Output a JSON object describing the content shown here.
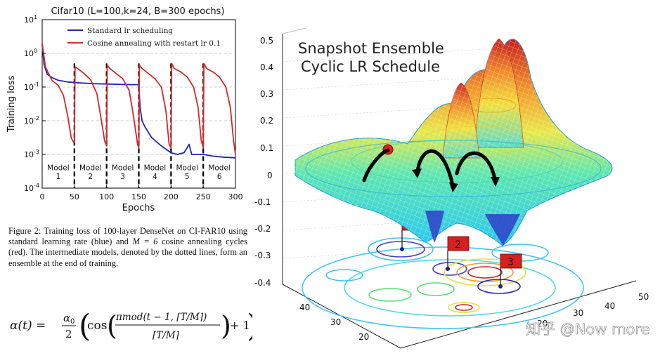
{
  "chart_data": {
    "type": "line",
    "title": "Cifar10 (L=100,k=24, B=300 epochs)",
    "xlabel": "Epochs",
    "ylabel": "Training loss",
    "xlim": [
      0,
      300
    ],
    "ylim_log10": [
      -4,
      1
    ],
    "x_ticks": [
      "0",
      "50",
      "100",
      "150",
      "200",
      "250",
      "300"
    ],
    "y_ticks": [
      "10^1",
      "10^0",
      "10^-1",
      "10^-2",
      "10^-3",
      "10^-4"
    ],
    "legend": [
      {
        "name": "Standard lr scheduling",
        "color": "#1f24b4"
      },
      {
        "name": "Cosine annealing with restart lr 0.1",
        "color": "#d62728"
      }
    ],
    "restart_epochs": [
      50,
      100,
      150,
      200,
      250
    ],
    "models": [
      {
        "name": "Model",
        "index": "1"
      },
      {
        "name": "Model",
        "index": "2"
      },
      {
        "name": "Model",
        "index": "3"
      },
      {
        "name": "Model",
        "index": "4"
      },
      {
        "name": "Model",
        "index": "5"
      },
      {
        "name": "Model",
        "index": "6"
      }
    ],
    "series": [
      {
        "name": "Standard lr scheduling",
        "x": [
          0,
          3,
          8,
          15,
          25,
          40,
          60,
          80,
          100,
          120,
          140,
          150,
          152,
          155,
          160,
          170,
          185,
          200,
          210,
          220,
          225,
          228,
          232,
          240,
          250,
          265,
          280,
          300
        ],
        "y_log10": [
          0.25,
          -0.35,
          -0.62,
          -0.72,
          -0.8,
          -0.85,
          -0.88,
          -0.9,
          -0.91,
          -0.92,
          -0.93,
          -0.93,
          -1.6,
          -2.0,
          -2.2,
          -2.5,
          -2.75,
          -2.95,
          -3.0,
          -2.95,
          -2.8,
          -2.7,
          -3.0,
          -3.0,
          -3.0,
          -3.05,
          -3.08,
          -3.1
        ]
      },
      {
        "name": "Cosine annealing with restart lr 0.1",
        "x": [
          0,
          5,
          15,
          25,
          33,
          40,
          45,
          48,
          50,
          51,
          55,
          65,
          75,
          85,
          92,
          97,
          100,
          101,
          105,
          115,
          125,
          135,
          142,
          148,
          150,
          151,
          155,
          165,
          175,
          185,
          192,
          197,
          200,
          201,
          205,
          215,
          225,
          235,
          242,
          247,
          250,
          251,
          255,
          265,
          275,
          285,
          292,
          297,
          300
        ],
        "y_log10": [
          0.3,
          -0.4,
          -0.8,
          -0.95,
          -1.25,
          -1.9,
          -2.5,
          -2.62,
          -2.65,
          -0.4,
          -0.45,
          -0.6,
          -0.78,
          -1.2,
          -2.0,
          -2.6,
          -2.75,
          -0.35,
          -0.45,
          -0.6,
          -0.75,
          -1.1,
          -1.9,
          -2.7,
          -2.8,
          -0.35,
          -0.45,
          -0.6,
          -0.75,
          -1.0,
          -1.7,
          -2.7,
          -2.8,
          -0.3,
          -0.45,
          -0.55,
          -0.7,
          -1.0,
          -1.6,
          -2.6,
          -2.8,
          -0.3,
          -0.45,
          -0.55,
          -0.7,
          -1.0,
          -1.6,
          -2.6,
          -3.0
        ]
      }
    ]
  },
  "caption": {
    "label": "Figure 2:",
    "text_a": "Training loss of 100-layer DenseNet on CI-FAR10 using standard learning rate (blue) and",
    "math": "M = 6",
    "text_b": "cosine annealing cycles (red). The intermediate models, denoted by the dotted lines, form an ensemble at the end of training."
  },
  "formula": {
    "lhs": "α(t) =",
    "frac_num": "α",
    "frac_num_sub": "0",
    "frac_den": "2",
    "cos": "cos",
    "inner_num": "πmod(t − 1, ⌈T/M⌉)",
    "inner_den": "⌈T/M⌉",
    "plus_one": "+ 1"
  },
  "surface": {
    "title_line1": "Snapshot Ensemble",
    "title_line2": "Cyclic LR Schedule",
    "z_ticks": [
      "0.5",
      "0.4",
      "0.3",
      "0.2",
      "0.1",
      "0",
      "-0.1",
      "-0.2",
      "-0.3",
      "-0.4"
    ],
    "y_ticks": [
      "40",
      "30",
      "20"
    ],
    "x_ticks": [
      "20",
      "30",
      "40",
      "50"
    ],
    "flags": [
      "1",
      "2",
      "3"
    ],
    "watermark": "知乎 @Now more"
  }
}
